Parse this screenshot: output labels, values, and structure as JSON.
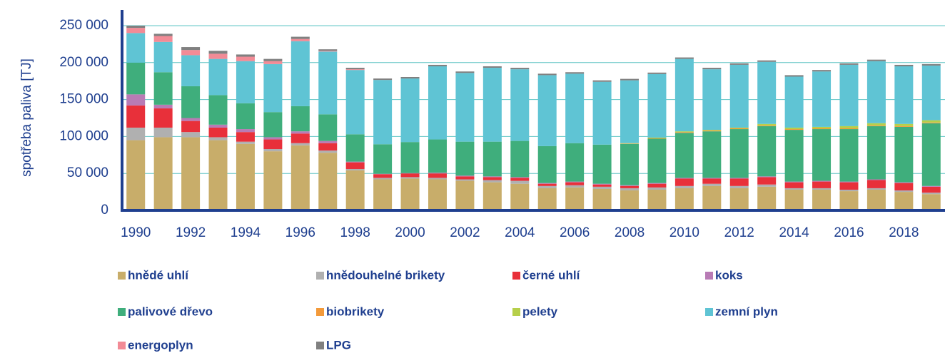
{
  "chart_data": {
    "type": "stacked_bar",
    "y_label": "spotřeba paliva [TJ]",
    "categories": [
      "1990",
      null,
      "1992",
      null,
      "1994",
      null,
      "1996",
      null,
      "1998",
      null,
      "2000",
      null,
      "2002",
      null,
      "2004",
      null,
      "2006",
      null,
      "2008",
      null,
      "2010",
      null,
      "2012",
      null,
      "2014",
      null,
      "2016",
      null,
      "2018",
      null
    ],
    "ylim": [
      0,
      250000
    ],
    "yticks": [
      0,
      {
        "value": 50000,
        "label": "50 000"
      },
      {
        "value": 100000,
        "label": "100 000"
      },
      {
        "value": 150000,
        "label": "150 000"
      },
      {
        "value": 200000,
        "label": "200 000"
      },
      {
        "value": 250000,
        "label": "250 000"
      }
    ],
    "grid": true,
    "series": [
      {
        "name": "hnědé uhlí",
        "color": "#c8ad6a",
        "values": [
          95000,
          99000,
          99000,
          95000,
          90000,
          80000,
          88000,
          78000,
          54000,
          42000,
          43000,
          42000,
          40000,
          38000,
          36000,
          30000,
          31000,
          29000,
          27000,
          28000,
          30000,
          33000,
          30000,
          32000,
          28000,
          28000,
          26000,
          28000,
          25000,
          22000
        ]
      },
      {
        "name": "hnědouhelné brikety",
        "color": "#b0b0b0",
        "values": [
          17000,
          13000,
          7000,
          4000,
          3000,
          3000,
          3000,
          3000,
          2000,
          2000,
          2000,
          2000,
          2000,
          3000,
          4000,
          3000,
          3000,
          3000,
          3000,
          3000,
          3000,
          3000,
          3000,
          3000,
          2000,
          2000,
          2000,
          2000,
          2000,
          2000
        ]
      },
      {
        "name": "černé uhlí",
        "color": "#e8303a",
        "values": [
          30000,
          26000,
          15000,
          13000,
          13000,
          13000,
          13000,
          10000,
          9000,
          5000,
          5000,
          6000,
          4000,
          4000,
          4000,
          3000,
          4000,
          3000,
          3000,
          5000,
          10000,
          7000,
          10000,
          10000,
          8000,
          9000,
          10000,
          11000,
          10000,
          8000
        ]
      },
      {
        "name": "koks",
        "color": "#b87bb5",
        "values": [
          15000,
          5000,
          4000,
          4000,
          4000,
          3000,
          3000,
          3000,
          1000,
          500,
          500,
          1000,
          1000,
          1000,
          1000,
          1000,
          1000,
          1000,
          1000,
          1000,
          1000,
          1000,
          1000,
          1000,
          1000,
          1000,
          1000,
          1000,
          1000,
          1000
        ]
      },
      {
        "name": "palivové dřevo",
        "color": "#3fae7c",
        "values": [
          43000,
          44000,
          43000,
          40000,
          35000,
          34000,
          34000,
          36000,
          37000,
          40000,
          42000,
          45000,
          46000,
          47000,
          49000,
          50000,
          52000,
          53000,
          56000,
          60000,
          61000,
          63000,
          66000,
          68000,
          70000,
          70000,
          71000,
          72000,
          75000,
          85000
        ]
      },
      {
        "name": "biobrikety",
        "color": "#f39a3a",
        "values": [
          0,
          0,
          0,
          0,
          0,
          0,
          0,
          0,
          0,
          0,
          0,
          0,
          0,
          0,
          0,
          0,
          0,
          0,
          500,
          500,
          1000,
          1000,
          1000,
          1000,
          1000,
          1000,
          1000,
          1000,
          1000,
          1000
        ]
      },
      {
        "name": "pelety",
        "color": "#b6cf4a",
        "values": [
          0,
          0,
          0,
          0,
          0,
          0,
          0,
          0,
          0,
          0,
          0,
          0,
          0,
          0,
          0,
          0,
          0,
          0,
          500,
          1000,
          1000,
          1000,
          1000,
          2000,
          2000,
          2000,
          3000,
          3000,
          3000,
          3000
        ]
      },
      {
        "name": "zemní plyn",
        "color": "#5fc4d4",
        "values": [
          40000,
          41000,
          42000,
          49000,
          57000,
          65000,
          88000,
          85000,
          87000,
          87000,
          86000,
          99000,
          93000,
          100000,
          97000,
          96000,
          94000,
          85000,
          85000,
          86000,
          98000,
          82000,
          85000,
          84000,
          69000,
          75000,
          83000,
          84000,
          78000,
          74000
        ]
      },
      {
        "name": "energoplyn",
        "color": "#f28b96",
        "values": [
          7000,
          8000,
          7000,
          7000,
          6000,
          4000,
          3000,
          1000,
          1000,
          0,
          0,
          0,
          0,
          0,
          0,
          0,
          0,
          0,
          0,
          0,
          0,
          0,
          0,
          0,
          0,
          0,
          0,
          0,
          0,
          0
        ]
      },
      {
        "name": "LPG",
        "color": "#808080",
        "values": [
          3000,
          3000,
          4000,
          4000,
          3000,
          3000,
          3000,
          2000,
          2000,
          2000,
          2000,
          2000,
          2000,
          2000,
          2000,
          2000,
          2000,
          2000,
          2000,
          2000,
          2000,
          2000,
          2000,
          2000,
          2000,
          2000,
          2000,
          2000,
          2000,
          2000
        ]
      }
    ]
  }
}
